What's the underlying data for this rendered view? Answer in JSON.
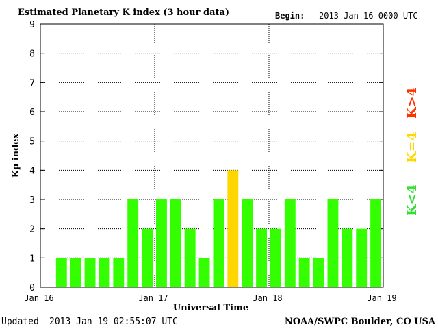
{
  "title": "Estimated Planetary K index (3 hour data)",
  "begin_label": "Begin:",
  "begin_value": "2013 Jan 16 0000 UTC",
  "updated_label": "Updated",
  "updated_value": "2013 Jan 19 02:55:07 UTC",
  "source": "NOAA/SWPC Boulder, CO USA",
  "legend": [
    {
      "label": "K>4",
      "color": "#ff3300"
    },
    {
      "label": "K=4",
      "color": "#ffd700"
    },
    {
      "label": "K<4",
      "color": "#33dd33"
    }
  ],
  "chart_data": {
    "type": "bar",
    "title": "Estimated Planetary K index (3 hour data)",
    "xlabel": "Universal Time",
    "ylabel": "Kp index",
    "ylim": [
      0,
      9
    ],
    "yticks": [
      "0",
      "1",
      "2",
      "3",
      "4",
      "5",
      "6",
      "7",
      "8",
      "9"
    ],
    "xticks": [
      "Jan 16",
      "Jan 17",
      "Jan 18",
      "Jan 19"
    ],
    "grid": true,
    "values": [
      1,
      1,
      1,
      1,
      1,
      3,
      2,
      3,
      3,
      2,
      1,
      3,
      4,
      3,
      2,
      2,
      3,
      1,
      1,
      3,
      2,
      2,
      3
    ],
    "first_bar_index": 1,
    "bars_per_day": 8,
    "days": 3,
    "colors": {
      "below4": "#33ff00",
      "equal4": "#ffd700",
      "above4": "#ff2200"
    }
  }
}
